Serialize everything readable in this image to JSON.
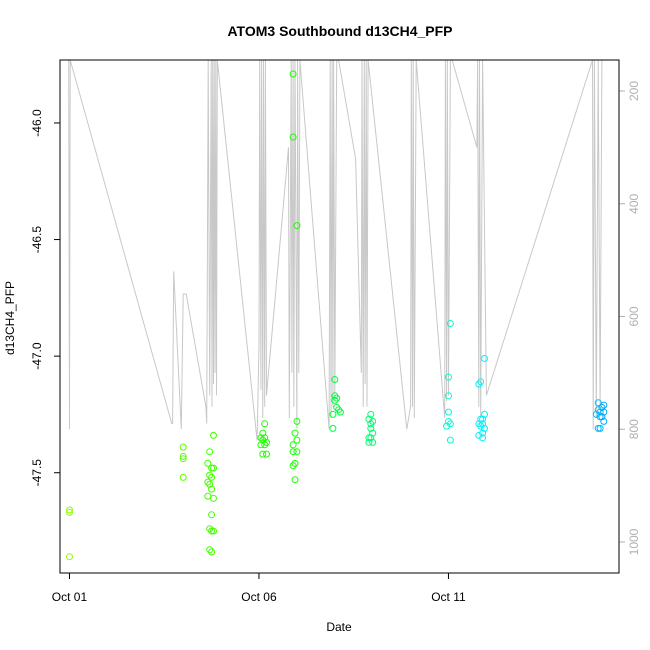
{
  "chart_data": {
    "type": "scatter",
    "title": "ATOM3 Southbound d13CH4_PFP",
    "xlabel": "Date",
    "ylabel": "d13CH4_PFP",
    "x_ticks": [
      "Oct 01",
      "Oct 06",
      "Oct 11"
    ],
    "x_tick_values": [
      1,
      6,
      11
    ],
    "xlim": [
      0.75,
      15.5
    ],
    "ylim": [
      -47.93,
      -45.73
    ],
    "y_ticks": [
      "-46.0",
      "-46.5",
      "-47.0",
      "-47.5"
    ],
    "y_tick_values": [
      -46.0,
      -46.5,
      -47.0,
      -47.5
    ],
    "secondary_axis": {
      "label": "",
      "ticks": [
        "200",
        "400",
        "600",
        "800",
        "1000"
      ],
      "tick_values": [
        200,
        400,
        600,
        800,
        1000
      ],
      "range": [
        1055,
        145
      ],
      "color": "#b0b0b0"
    },
    "series": [
      {
        "points": [
          {
            "x": 1.0,
            "y": -47.67,
            "color": "#8cff00"
          },
          {
            "x": 1.0,
            "y": -47.66,
            "color": "#8cff00"
          },
          {
            "x": 1.0,
            "y": -47.86,
            "color": "#8cff00"
          },
          {
            "x": 4.0,
            "y": -47.39,
            "color": "#5aff00"
          },
          {
            "x": 4.0,
            "y": -47.43,
            "color": "#5aff00"
          },
          {
            "x": 4.0,
            "y": -47.44,
            "color": "#5aff00"
          },
          {
            "x": 4.0,
            "y": -47.52,
            "color": "#5aff00"
          },
          {
            "x": 4.8,
            "y": -47.34,
            "color": "#44ff00"
          },
          {
            "x": 4.7,
            "y": -47.41,
            "color": "#44ff00"
          },
          {
            "x": 4.65,
            "y": -47.46,
            "color": "#44ff00"
          },
          {
            "x": 4.75,
            "y": -47.48,
            "color": "#44ff00"
          },
          {
            "x": 4.8,
            "y": -47.48,
            "color": "#44ff00"
          },
          {
            "x": 4.7,
            "y": -47.51,
            "color": "#44ff00"
          },
          {
            "x": 4.75,
            "y": -47.52,
            "color": "#44ff00"
          },
          {
            "x": 4.65,
            "y": -47.54,
            "color": "#44ff00"
          },
          {
            "x": 4.7,
            "y": -47.55,
            "color": "#44ff00"
          },
          {
            "x": 4.75,
            "y": -47.57,
            "color": "#44ff00"
          },
          {
            "x": 4.65,
            "y": -47.6,
            "color": "#44ff00"
          },
          {
            "x": 4.8,
            "y": -47.61,
            "color": "#44ff00"
          },
          {
            "x": 4.75,
            "y": -47.68,
            "color": "#44ff00"
          },
          {
            "x": 4.7,
            "y": -47.74,
            "color": "#44ff00"
          },
          {
            "x": 4.75,
            "y": -47.75,
            "color": "#44ff00"
          },
          {
            "x": 4.8,
            "y": -47.75,
            "color": "#44ff00"
          },
          {
            "x": 4.7,
            "y": -47.83,
            "color": "#44ff00"
          },
          {
            "x": 4.75,
            "y": -47.84,
            "color": "#44ff00"
          },
          {
            "x": 6.15,
            "y": -47.29,
            "color": "#1eff00"
          },
          {
            "x": 6.1,
            "y": -47.33,
            "color": "#1eff00"
          },
          {
            "x": 6.05,
            "y": -47.35,
            "color": "#1eff00"
          },
          {
            "x": 6.15,
            "y": -47.35,
            "color": "#1eff00"
          },
          {
            "x": 6.1,
            "y": -47.36,
            "color": "#1eff00"
          },
          {
            "x": 6.2,
            "y": -47.37,
            "color": "#1eff00"
          },
          {
            "x": 6.05,
            "y": -47.38,
            "color": "#1eff00"
          },
          {
            "x": 6.15,
            "y": -47.38,
            "color": "#1eff00"
          },
          {
            "x": 6.1,
            "y": -47.42,
            "color": "#1eff00"
          },
          {
            "x": 6.2,
            "y": -47.42,
            "color": "#1eff00"
          },
          {
            "x": 6.9,
            "y": -45.79,
            "color": "#1aff00"
          },
          {
            "x": 6.9,
            "y": -46.06,
            "color": "#1aff00"
          },
          {
            "x": 7.0,
            "y": -46.44,
            "color": "#1aff00"
          },
          {
            "x": 7.0,
            "y": -47.28,
            "color": "#1aff00"
          },
          {
            "x": 6.95,
            "y": -47.33,
            "color": "#1aff00"
          },
          {
            "x": 7.0,
            "y": -47.36,
            "color": "#1aff00"
          },
          {
            "x": 6.9,
            "y": -47.38,
            "color": "#1aff00"
          },
          {
            "x": 7.0,
            "y": -47.41,
            "color": "#1aff00"
          },
          {
            "x": 6.9,
            "y": -47.41,
            "color": "#1aff00"
          },
          {
            "x": 6.95,
            "y": -47.46,
            "color": "#1aff00"
          },
          {
            "x": 6.9,
            "y": -47.47,
            "color": "#1aff00"
          },
          {
            "x": 6.95,
            "y": -47.53,
            "color": "#1aff00"
          },
          {
            "x": 8.0,
            "y": -47.1,
            "color": "#00ff3c"
          },
          {
            "x": 8.0,
            "y": -47.17,
            "color": "#00ff3c"
          },
          {
            "x": 8.05,
            "y": -47.18,
            "color": "#00ff3c"
          },
          {
            "x": 8.0,
            "y": -47.19,
            "color": "#00ff3c"
          },
          {
            "x": 8.05,
            "y": -47.22,
            "color": "#00ff3c"
          },
          {
            "x": 8.1,
            "y": -47.23,
            "color": "#00ff3c"
          },
          {
            "x": 8.15,
            "y": -47.24,
            "color": "#00ff3c"
          },
          {
            "x": 7.95,
            "y": -47.25,
            "color": "#00ff3c"
          },
          {
            "x": 7.95,
            "y": -47.31,
            "color": "#00ff3c"
          },
          {
            "x": 8.95,
            "y": -47.25,
            "color": "#00ff6e"
          },
          {
            "x": 8.9,
            "y": -47.27,
            "color": "#00ff6e"
          },
          {
            "x": 8.95,
            "y": -47.29,
            "color": "#00ff6e"
          },
          {
            "x": 9.0,
            "y": -47.28,
            "color": "#00ff6e"
          },
          {
            "x": 8.95,
            "y": -47.31,
            "color": "#00ff6e"
          },
          {
            "x": 9.0,
            "y": -47.33,
            "color": "#00ff6e"
          },
          {
            "x": 8.9,
            "y": -47.35,
            "color": "#00ff6e"
          },
          {
            "x": 8.95,
            "y": -47.35,
            "color": "#00ff6e"
          },
          {
            "x": 8.9,
            "y": -47.37,
            "color": "#00ff6e"
          },
          {
            "x": 9.0,
            "y": -47.37,
            "color": "#00ff6e"
          },
          {
            "x": 11.05,
            "y": -46.86,
            "color": "#00ffd2"
          },
          {
            "x": 11.0,
            "y": -47.09,
            "color": "#00ffd2"
          },
          {
            "x": 11.0,
            "y": -47.17,
            "color": "#00ffd2"
          },
          {
            "x": 11.0,
            "y": -47.24,
            "color": "#00ffd2"
          },
          {
            "x": 11.0,
            "y": -47.28,
            "color": "#00ffd2"
          },
          {
            "x": 11.05,
            "y": -47.29,
            "color": "#00ffd2"
          },
          {
            "x": 10.95,
            "y": -47.3,
            "color": "#00ffd2"
          },
          {
            "x": 11.05,
            "y": -47.36,
            "color": "#00ffd2"
          },
          {
            "x": 11.95,
            "y": -47.01,
            "color": "#00f4ff"
          },
          {
            "x": 11.85,
            "y": -47.11,
            "color": "#00f4ff"
          },
          {
            "x": 11.8,
            "y": -47.12,
            "color": "#00f4ff"
          },
          {
            "x": 11.95,
            "y": -47.25,
            "color": "#00f4ff"
          },
          {
            "x": 11.85,
            "y": -47.27,
            "color": "#00f4ff"
          },
          {
            "x": 11.9,
            "y": -47.27,
            "color": "#00f4ff"
          },
          {
            "x": 11.8,
            "y": -47.29,
            "color": "#00f4ff"
          },
          {
            "x": 11.9,
            "y": -47.29,
            "color": "#00f4ff"
          },
          {
            "x": 11.85,
            "y": -47.3,
            "color": "#00f4ff"
          },
          {
            "x": 11.95,
            "y": -47.31,
            "color": "#00f4ff"
          },
          {
            "x": 11.9,
            "y": -47.33,
            "color": "#00f4ff"
          },
          {
            "x": 11.8,
            "y": -47.34,
            "color": "#00f4ff"
          },
          {
            "x": 11.9,
            "y": -47.35,
            "color": "#00f4ff"
          },
          {
            "x": 14.95,
            "y": -47.2,
            "color": "#00c0ff"
          },
          {
            "x": 15.1,
            "y": -47.21,
            "color": "#00a8ff"
          },
          {
            "x": 15.05,
            "y": -47.22,
            "color": "#00a8ff"
          },
          {
            "x": 14.95,
            "y": -47.23,
            "color": "#00c0ff"
          },
          {
            "x": 15.0,
            "y": -47.24,
            "color": "#00b4ff"
          },
          {
            "x": 15.1,
            "y": -47.24,
            "color": "#00a8ff"
          },
          {
            "x": 14.9,
            "y": -47.25,
            "color": "#00c0ff"
          },
          {
            "x": 15.0,
            "y": -47.26,
            "color": "#00b4ff"
          },
          {
            "x": 15.05,
            "y": -47.26,
            "color": "#00a8ff"
          },
          {
            "x": 15.1,
            "y": -47.28,
            "color": "#00a8ff"
          },
          {
            "x": 14.95,
            "y": -47.31,
            "color": "#00b4ff"
          },
          {
            "x": 15.0,
            "y": -47.31,
            "color": "#00b4ff"
          }
        ]
      },
      {
        "type": "line",
        "axis": "secondary",
        "color": "#c8c8c8",
        "x": [
          0.98,
          1.0,
          1.02,
          3.7,
          3.72,
          3.75,
          3.95,
          4.0,
          4.08,
          4.6,
          4.62,
          4.66,
          4.7,
          4.74,
          4.76,
          4.78,
          4.8,
          4.82,
          4.84,
          4.86,
          4.88,
          4.9,
          5.95,
          6.0,
          6.02,
          6.05,
          6.07,
          6.1,
          6.12,
          6.15,
          6.17,
          6.2,
          6.78,
          6.8,
          6.85,
          6.87,
          6.9,
          6.92,
          6.95,
          7.0,
          7.02,
          7.05,
          7.08,
          7.85,
          7.88,
          7.9,
          7.93,
          7.95,
          7.97,
          8.0,
          8.05,
          8.1,
          8.55,
          8.7,
          8.72,
          8.75,
          8.78,
          8.8,
          8.83,
          8.85,
          8.88,
          9.9,
          10.0,
          10.02,
          10.05,
          10.07,
          10.1,
          10.15,
          10.9,
          10.92,
          10.95,
          10.97,
          11.0,
          11.05,
          11.1,
          11.75,
          11.77,
          11.8,
          11.82,
          11.85,
          11.9,
          12.0,
          14.8,
          14.82,
          14.85,
          14.9,
          14.95,
          15.0,
          15.05,
          15.1
        ],
        "y": [
          120,
          800,
          120,
          790,
          790,
          520,
          800,
          560,
          560,
          760,
          790,
          120,
          740,
          120,
          760,
          120,
          720,
          120,
          700,
          120,
          740,
          120,
          820,
          650,
          120,
          730,
          120,
          780,
          120,
          760,
          120,
          740,
          300,
          780,
          120,
          700,
          120,
          760,
          120,
          800,
          120,
          700,
          120,
          800,
          120,
          780,
          120,
          760,
          120,
          740,
          120,
          120,
          320,
          700,
          120,
          760,
          120,
          720,
          120,
          760,
          120,
          800,
          760,
          120,
          760,
          120,
          780,
          120,
          780,
          120,
          750,
          120,
          740,
          120,
          120,
          300,
          120,
          760,
          120,
          780,
          120,
          740,
          120,
          800,
          120,
          780,
          120,
          760,
          120,
          120
        ]
      }
    ]
  }
}
